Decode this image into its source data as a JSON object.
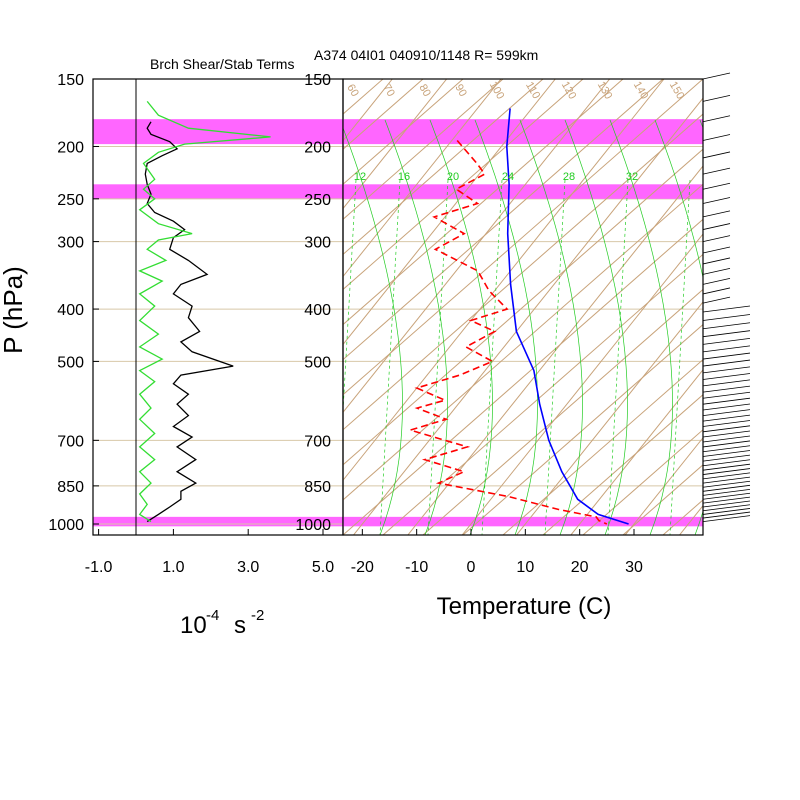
{
  "colors": {
    "band": "#ff66ff",
    "temperature": "#0000ff",
    "dewpoint": "#ff0000",
    "shear": "#000000",
    "stability": "#33dd33",
    "skew_lines": "#c8a37a",
    "mixing_ratio": "#22cc22",
    "isobar": "#d8c8a8"
  },
  "chart_data": [
    {
      "type": "line",
      "title": "Brch Shear/Stab Terms",
      "xlabel": "10",
      "xlabel_exp": "-4",
      "xlabel_unit": "s",
      "xlabel_unit_exp": "-2",
      "ylabel": "P (hPa)",
      "y_scale": "log",
      "xlim": [
        -1.0,
        5.7
      ],
      "ylim": [
        1050,
        150
      ],
      "x_ticks": [
        "-1.0",
        "1.0",
        "3.0",
        "5.0"
      ],
      "y_ticks": [
        "150",
        "200",
        "250",
        "300",
        "400",
        "500",
        "700",
        "850",
        "1000"
      ],
      "bands": [
        [
          178,
          198
        ],
        [
          235,
          250
        ],
        [
          970,
          1010
        ]
      ],
      "series": [
        {
          "color": "black",
          "points": [
            [
              0.4,
              180
            ],
            [
              0.3,
              185
            ],
            [
              0.4,
              190
            ],
            [
              0.9,
              196
            ],
            [
              1.1,
              202
            ],
            [
              0.7,
              208
            ],
            [
              0.3,
              215
            ],
            [
              0.25,
              225
            ],
            [
              0.3,
              235
            ],
            [
              0.4,
              245
            ],
            [
              0.3,
              255
            ],
            [
              0.5,
              265
            ],
            [
              1.0,
              275
            ],
            [
              1.3,
              285
            ],
            [
              1.0,
              295
            ],
            [
              0.9,
              310
            ],
            [
              1.4,
              325
            ],
            [
              1.9,
              345
            ],
            [
              1.2,
              360
            ],
            [
              1.0,
              375
            ],
            [
              1.5,
              395
            ],
            [
              1.4,
              415
            ],
            [
              1.7,
              440
            ],
            [
              1.2,
              460
            ],
            [
              1.5,
              480
            ],
            [
              2.6,
              510
            ],
            [
              1.2,
              530
            ],
            [
              1.0,
              550
            ],
            [
              1.4,
              575
            ],
            [
              1.1,
              600
            ],
            [
              1.4,
              630
            ],
            [
              1.0,
              660
            ],
            [
              1.5,
              690
            ],
            [
              1.1,
              720
            ],
            [
              1.6,
              760
            ],
            [
              1.1,
              800
            ],
            [
              1.6,
              840
            ],
            [
              1.2,
              870
            ],
            [
              1.2,
              900
            ],
            [
              0.9,
              930
            ],
            [
              0.6,
              960
            ],
            [
              0.3,
              990
            ]
          ]
        },
        {
          "color": "green",
          "points": [
            [
              0.3,
              165
            ],
            [
              0.6,
              175
            ],
            [
              1.4,
              185
            ],
            [
              3.6,
              192
            ],
            [
              1.3,
              198
            ],
            [
              0.6,
              205
            ],
            [
              0.2,
              215
            ],
            [
              0.5,
              230
            ],
            [
              0.2,
              240
            ],
            [
              0.5,
              250
            ],
            [
              0.1,
              262
            ],
            [
              0.6,
              278
            ],
            [
              1.5,
              290
            ],
            [
              0.6,
              298
            ],
            [
              0.3,
              310
            ],
            [
              0.8,
              325
            ],
            [
              0.1,
              340
            ],
            [
              0.7,
              355
            ],
            [
              0.1,
              375
            ],
            [
              0.5,
              395
            ],
            [
              0.1,
              420
            ],
            [
              0.6,
              445
            ],
            [
              0.1,
              470
            ],
            [
              0.7,
              495
            ],
            [
              0.1,
              520
            ],
            [
              0.5,
              545
            ],
            [
              0.1,
              575
            ],
            [
              0.4,
              610
            ],
            [
              0.1,
              640
            ],
            [
              0.5,
              680
            ],
            [
              0.1,
              720
            ],
            [
              0.5,
              760
            ],
            [
              0.1,
              800
            ],
            [
              0.4,
              840
            ],
            [
              0.1,
              880
            ],
            [
              0.3,
              920
            ],
            [
              0.1,
              960
            ],
            [
              0.4,
              990
            ]
          ]
        }
      ]
    },
    {
      "type": "line",
      "title": "A374 04I01 040910/1148 R= 599km",
      "xlabel": "Temperature (C)",
      "y_scale": "log",
      "xlim": [
        -23,
        42
      ],
      "ylim": [
        1050,
        150
      ],
      "x_ticks": [
        "-20",
        "-10",
        "0",
        "10",
        "20",
        "30"
      ],
      "y_ticks": [
        "150",
        "200",
        "250",
        "300",
        "400",
        "500",
        "700",
        "850",
        "1000"
      ],
      "bands": [
        [
          178,
          198
        ],
        [
          235,
          250
        ],
        [
          970,
          1010
        ]
      ],
      "mixing_ratio_labels": [
        "12",
        "16",
        "20",
        "24",
        "28",
        "32"
      ],
      "adiabat_labels": [
        "60",
        "70",
        "80",
        "90",
        "100",
        "110",
        "120",
        "130",
        "140",
        "150"
      ],
      "series": [
        {
          "name": "Temperature",
          "color": "blue",
          "points": [
            [
              -54,
              170
            ],
            [
              -49,
              200
            ],
            [
              -43,
              235
            ],
            [
              -36,
              290
            ],
            [
              -28,
              360
            ],
            [
              -20,
              440
            ],
            [
              -11,
              520
            ],
            [
              -5,
              600
            ],
            [
              2,
              700
            ],
            [
              9,
              800
            ],
            [
              16,
              900
            ],
            [
              22,
              960
            ],
            [
              29,
              1000
            ]
          ]
        },
        {
          "name": "Dewpoint",
          "color": "red",
          "points": [
            [
              -59,
              195
            ],
            [
              -52,
              215
            ],
            [
              -49,
              225
            ],
            [
              -52,
              240
            ],
            [
              -46,
              255
            ],
            [
              -52,
              270
            ],
            [
              -44,
              290
            ],
            [
              -47,
              310
            ],
            [
              -36,
              340
            ],
            [
              -31,
              370
            ],
            [
              -25,
              400
            ],
            [
              -30,
              420
            ],
            [
              -24,
              440
            ],
            [
              -27,
              470
            ],
            [
              -20,
              500
            ],
            [
              -24,
              530
            ],
            [
              -30,
              560
            ],
            [
              -23,
              590
            ],
            [
              -27,
              610
            ],
            [
              -20,
              640
            ],
            [
              -25,
              670
            ],
            [
              -12,
              720
            ],
            [
              -18,
              760
            ],
            [
              -9,
              800
            ],
            [
              -12,
              840
            ],
            [
              3,
              890
            ],
            [
              14,
              940
            ],
            [
              22,
              970
            ],
            [
              23,
              985
            ],
            [
              25,
              1000
            ]
          ]
        }
      ],
      "wind_barbs": "right column"
    }
  ]
}
